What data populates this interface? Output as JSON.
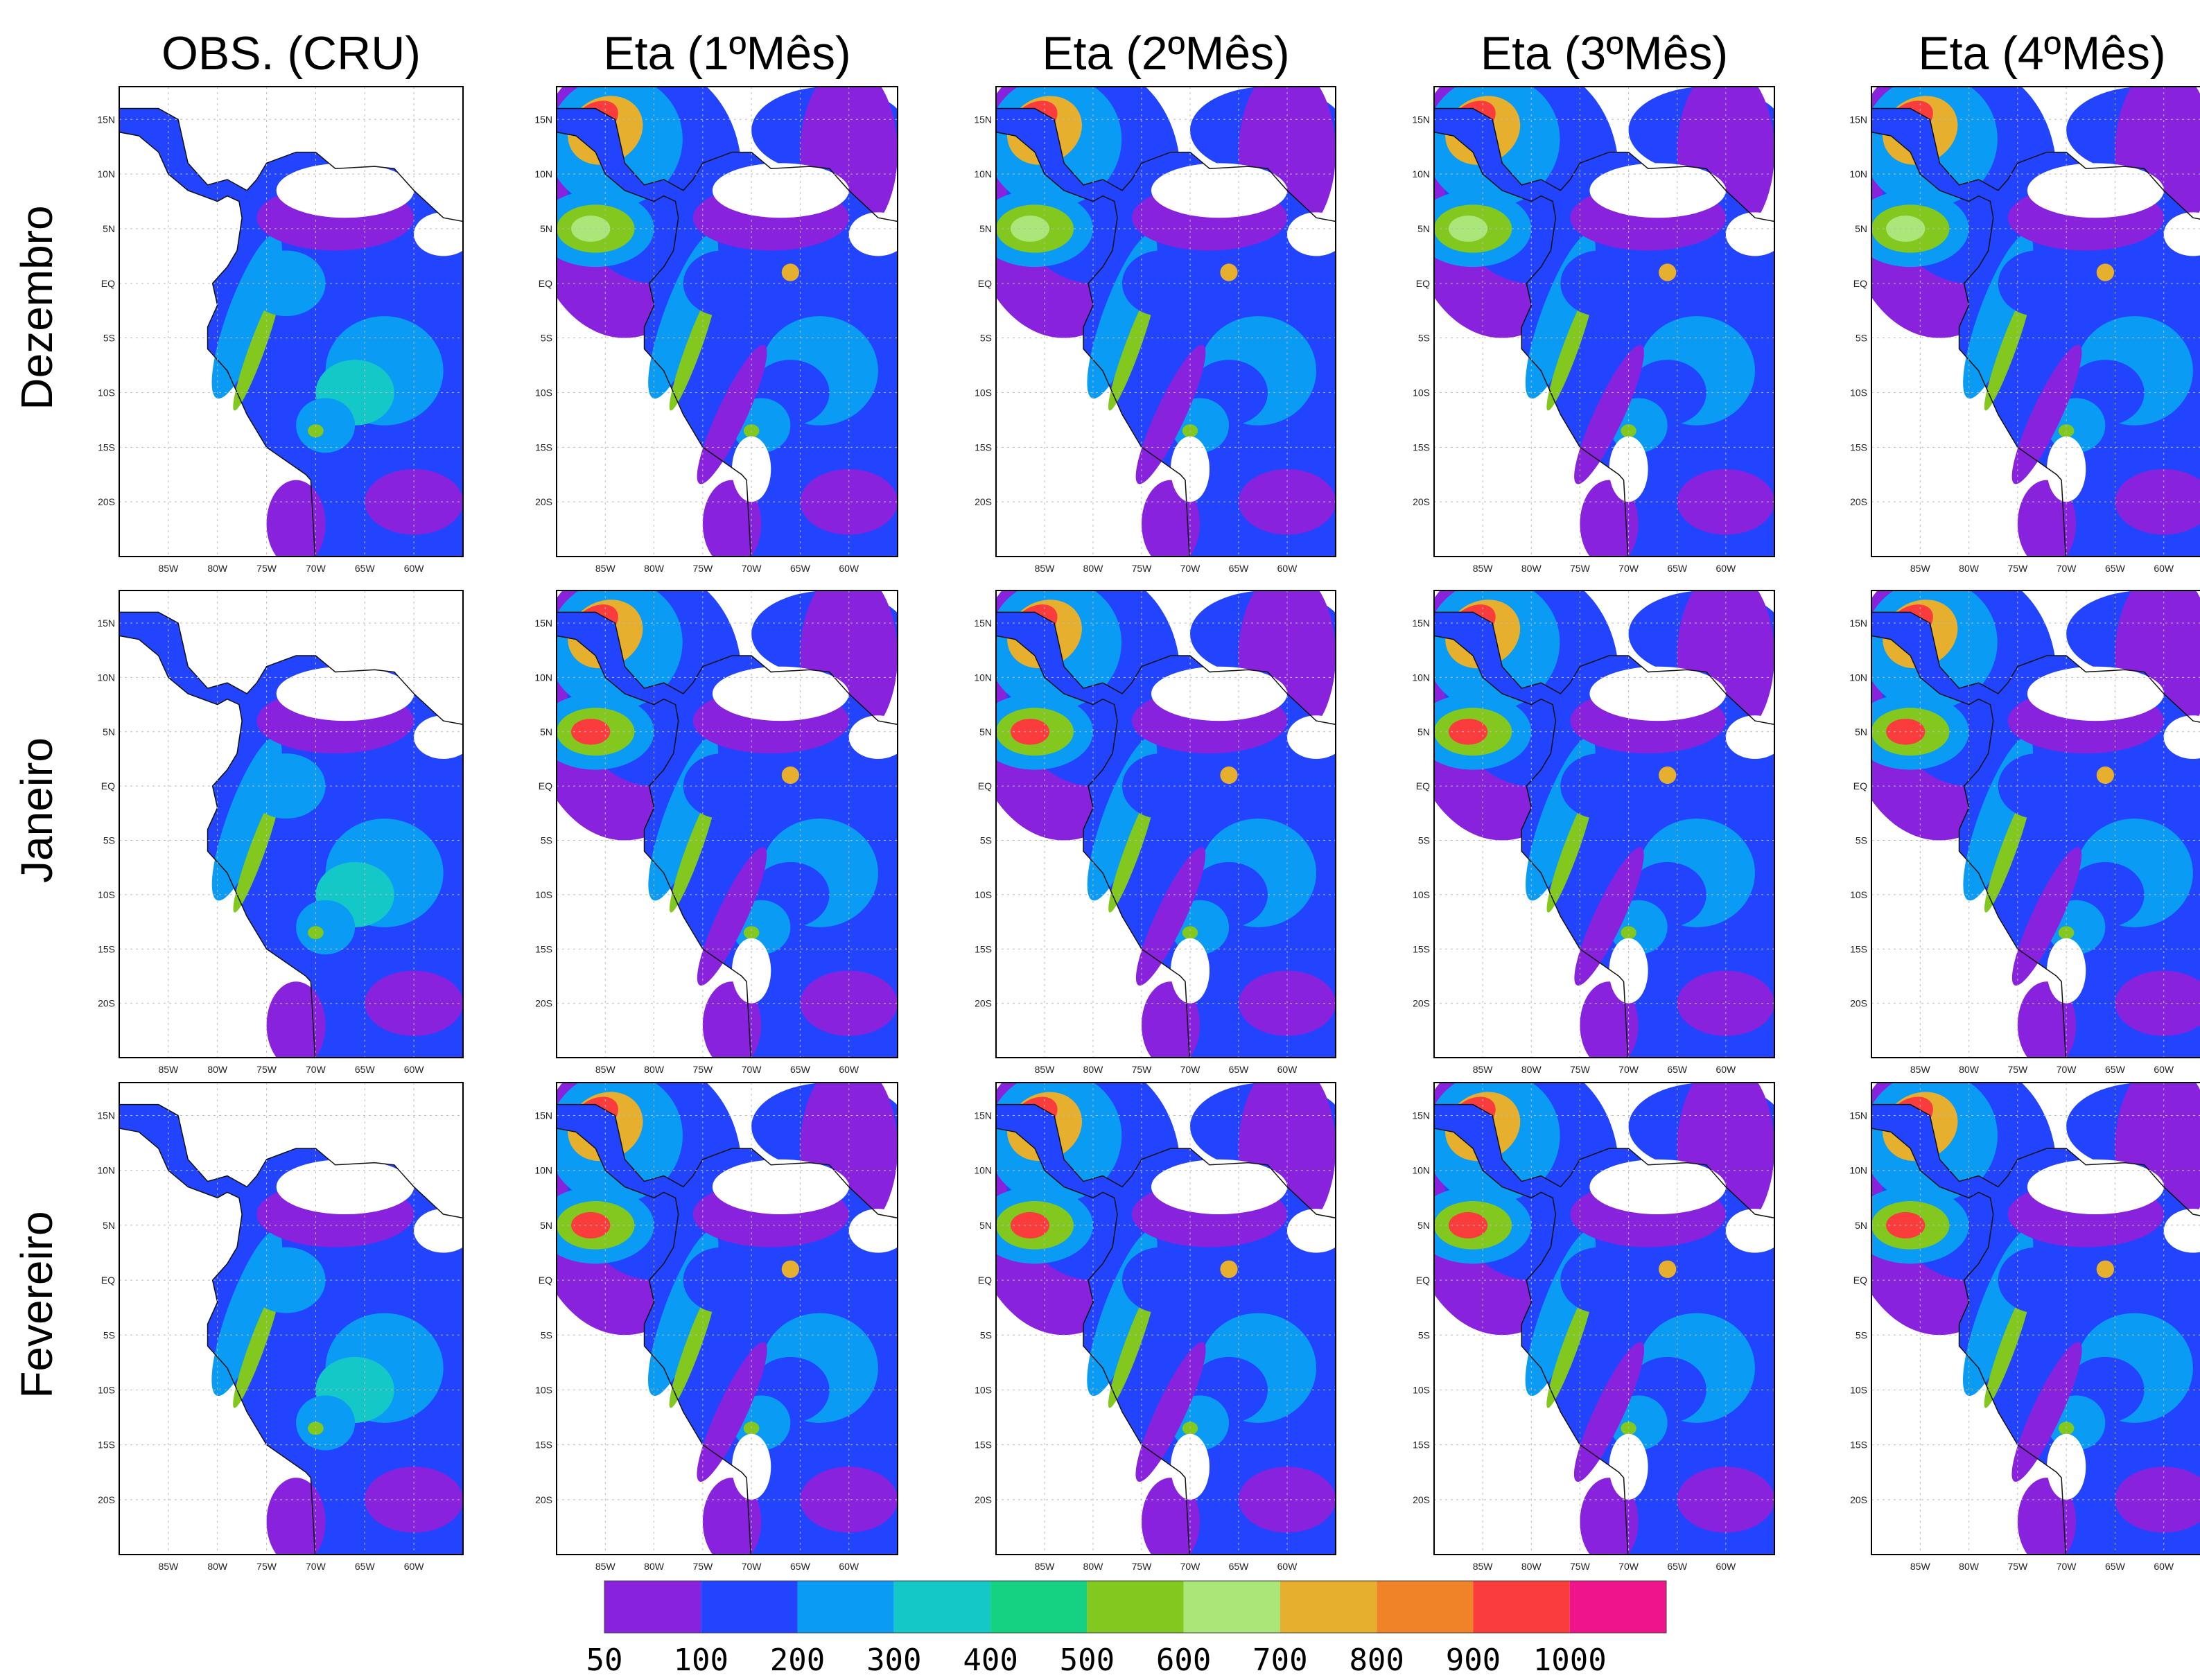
{
  "columns": [
    "OBS. (CRU)",
    "Eta (1ºMês)",
    "Eta (2ºMês)",
    "Eta (3ºMês)",
    "Eta (4ºMês)"
  ],
  "rows": [
    "Dezembro",
    "Janeiro",
    "Fevereiro"
  ],
  "map_axes": {
    "lonlim": [
      -90,
      -55
    ],
    "latlim": [
      -25,
      18
    ],
    "lon_ticks": [
      {
        "value": -85,
        "label": "85W"
      },
      {
        "value": -80,
        "label": "80W"
      },
      {
        "value": -75,
        "label": "75W"
      },
      {
        "value": -70,
        "label": "70W"
      },
      {
        "value": -65,
        "label": "65W"
      },
      {
        "value": -60,
        "label": "60W"
      }
    ],
    "lat_ticks": [
      {
        "value": 15,
        "label": "15N"
      },
      {
        "value": 10,
        "label": "10N"
      },
      {
        "value": 5,
        "label": "5N"
      },
      {
        "value": 0,
        "label": "EQ"
      },
      {
        "value": -5,
        "label": "5S"
      },
      {
        "value": -10,
        "label": "10S"
      },
      {
        "value": -15,
        "label": "15S"
      },
      {
        "value": -20,
        "label": "20S"
      }
    ]
  },
  "colorbar": {
    "colors": [
      "#8822dd",
      "#2244ff",
      "#0a9cf5",
      "#14c8c8",
      "#14d282",
      "#82c81e",
      "#aae678",
      "#e6af2d",
      "#f08228",
      "#fa3c3c",
      "#f0148c"
    ],
    "labels": [
      50,
      100,
      200,
      300,
      400,
      500,
      600,
      700,
      800,
      900,
      1000
    ]
  }
}
